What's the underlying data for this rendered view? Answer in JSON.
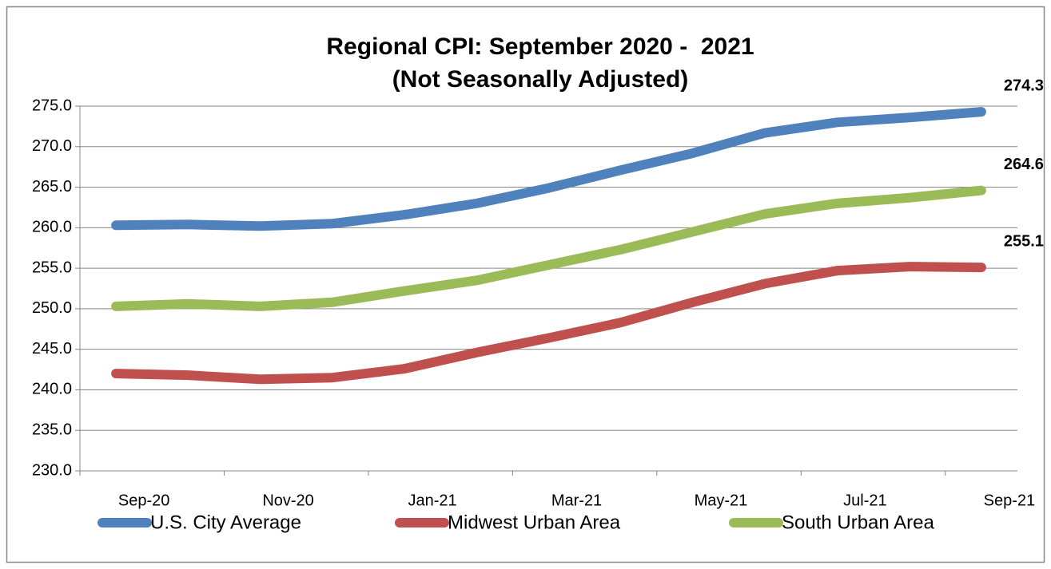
{
  "chart_data": {
    "type": "line",
    "title": "Regional CPI: September 2020 -  2021",
    "subtitle": "(Not Seasonally Adjusted)",
    "categories": [
      "Sep-20",
      null,
      "Nov-20",
      null,
      "Jan-21",
      null,
      "Mar-21",
      null,
      "May-21",
      null,
      "Jul-21",
      null,
      "Sep-21"
    ],
    "series": [
      {
        "name": "U.S. City Average",
        "color": "#4f81bd",
        "values": [
          260.3,
          260.4,
          260.2,
          260.5,
          261.6,
          263.0,
          264.9,
          267.1,
          269.2,
          271.7,
          273.0,
          273.6,
          274.3
        ]
      },
      {
        "name": "Midwest Urban Area",
        "color": "#c0504d",
        "values": [
          242.0,
          241.8,
          241.3,
          241.5,
          242.6,
          244.6,
          246.4,
          248.3,
          250.8,
          253.1,
          254.7,
          255.2,
          255.1
        ]
      },
      {
        "name": "South Urban Area",
        "color": "#9bbb59",
        "values": [
          250.3,
          250.6,
          250.3,
          250.8,
          252.2,
          253.5,
          255.4,
          257.3,
          259.5,
          261.7,
          263.0,
          263.7,
          264.6
        ]
      }
    ],
    "data_labels": "last",
    "ylim": [
      230,
      275
    ],
    "yticks": [
      {
        "value": 230,
        "label": "230.0"
      },
      {
        "value": 235,
        "label": "235.0"
      },
      {
        "value": 240,
        "label": "240.0"
      },
      {
        "value": 245,
        "label": "245.0"
      },
      {
        "value": 250,
        "label": "250.0"
      },
      {
        "value": 255,
        "label": "255.0"
      },
      {
        "value": 260,
        "label": "260.0"
      },
      {
        "value": 265,
        "label": "265.0"
      },
      {
        "value": 270,
        "label": "270.0"
      },
      {
        "value": 275,
        "label": "275.0"
      }
    ],
    "grid": true,
    "legend": "bottom"
  }
}
